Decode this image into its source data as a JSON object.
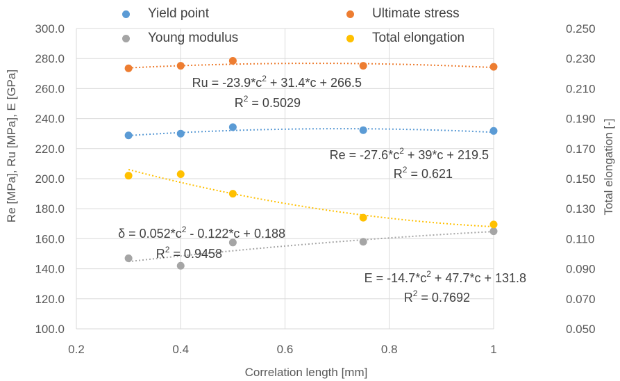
{
  "chart_data": {
    "type": "scatter",
    "xlabel": "Correlation length [mm]",
    "ylabel_left": "Re [MPa], Ru [MPa], E [GPa]",
    "ylabel_right": "Total elongation [-]",
    "xlim": [
      0.2,
      1.0
    ],
    "ylim_left": [
      100,
      300
    ],
    "ylim_right": [
      0.05,
      0.25
    ],
    "x_ticks": [
      "0.2",
      "0.4",
      "0.6",
      "0.8",
      "1"
    ],
    "y_left_ticks": [
      "100.0",
      "120.0",
      "140.0",
      "160.0",
      "180.0",
      "200.0",
      "220.0",
      "240.0",
      "260.0",
      "280.0",
      "300.0"
    ],
    "y_right_ticks": [
      "0.050",
      "0.070",
      "0.090",
      "0.110",
      "0.130",
      "0.150",
      "0.170",
      "0.190",
      "0.210",
      "0.230",
      "0.250"
    ],
    "grid": true,
    "legend_position": "top",
    "x": [
      0.3,
      0.4,
      0.5,
      0.75,
      1.0
    ],
    "series": [
      {
        "name": "Yield point",
        "axis": "left",
        "color": "#5B9BD5",
        "values": [
          228.8,
          230.0,
          234.3,
          232.3,
          231.8
        ],
        "trend": [
          -27.6,
          39,
          219.5
        ],
        "eq_main": "Re = -27.6*c",
        "eq_sup": "2",
        "eq_tail": " + 39*c + 219.5",
        "r2_main": "R",
        "r2_sup": "2",
        "r2_tail": " = 0.621"
      },
      {
        "name": "Ultimate stress",
        "axis": "left",
        "color": "#ED7D31",
        "values": [
          273.5,
          275.2,
          278.5,
          275.2,
          274.5
        ],
        "trend": [
          -23.9,
          31.4,
          266.5
        ],
        "eq_main": "Ru = -23.9*c",
        "eq_sup": "2",
        "eq_tail": " + 31.4*c + 266.5",
        "r2_main": "R",
        "r2_sup": "2",
        "r2_tail": " = 0.5029"
      },
      {
        "name": "Young modulus",
        "axis": "left",
        "color": "#A5A5A5",
        "values": [
          147.0,
          142.0,
          157.5,
          158.0,
          165.0
        ],
        "trend": [
          -14.7,
          47.7,
          131.8
        ],
        "eq_main": "E = -14.7*c",
        "eq_sup": "2",
        "eq_tail": " + 47.7*c + 131.8",
        "r2_main": "R",
        "r2_sup": "2",
        "r2_tail": " = 0.7692"
      },
      {
        "name": "Total elongation",
        "axis": "right",
        "color": "#FFC000",
        "values": [
          0.152,
          0.153,
          0.14,
          0.124,
          0.1195
        ],
        "trend": [
          0.052,
          -0.122,
          0.188
        ],
        "eq_main": "δ = 0.052*c",
        "eq_sup": "2",
        "eq_tail": " - 0.122*c + 0.188",
        "r2_main": "R",
        "r2_sup": "2",
        "r2_tail": " = 0.9458"
      }
    ]
  }
}
